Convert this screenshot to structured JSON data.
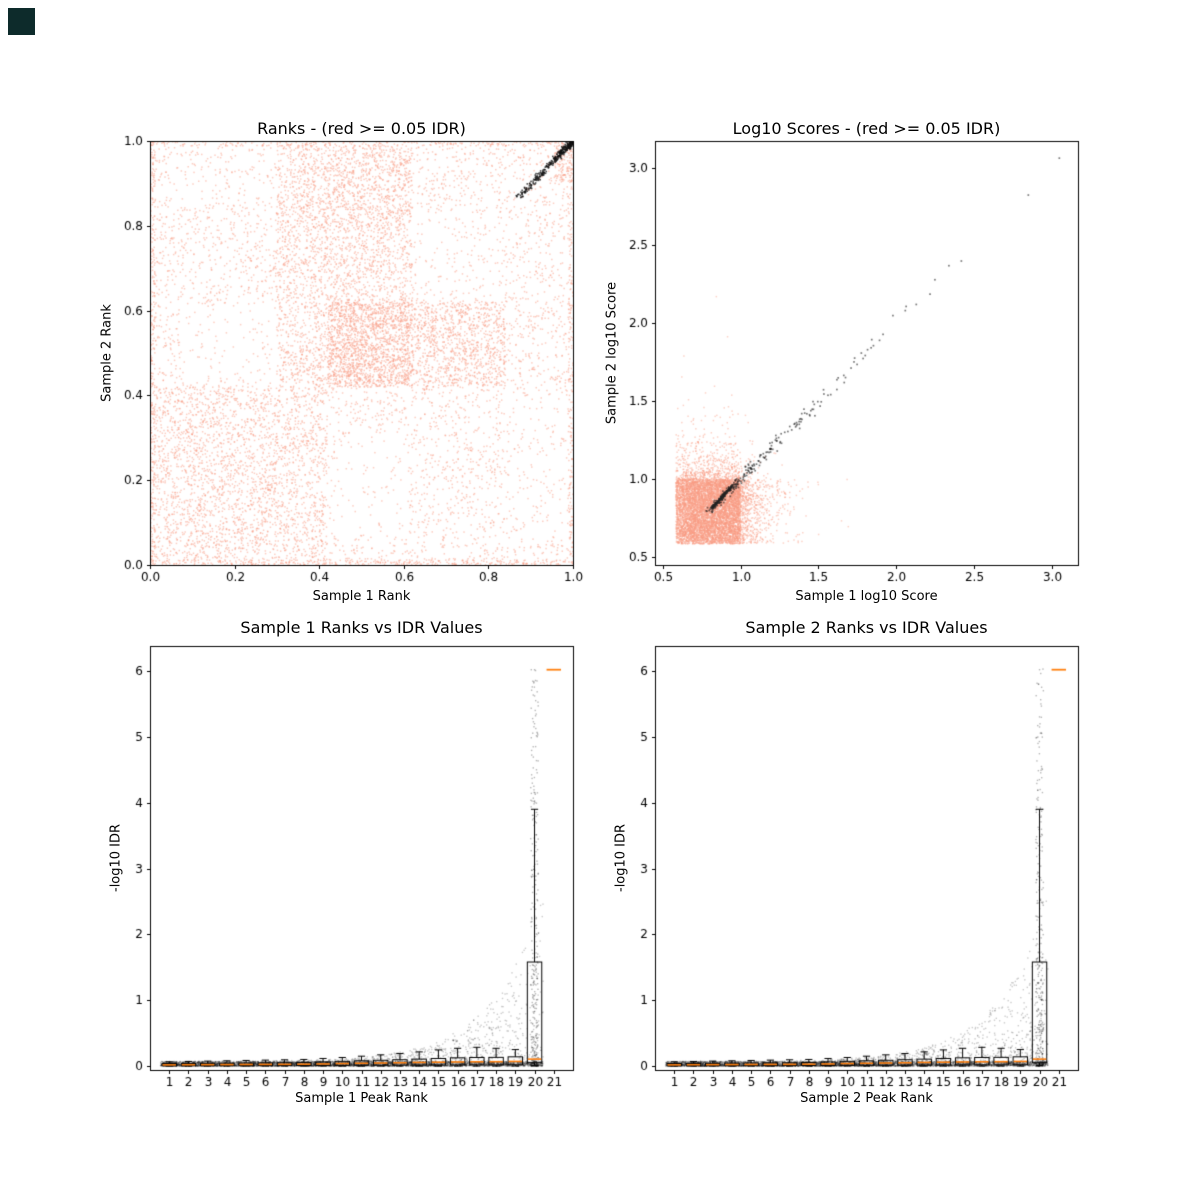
{
  "window": {
    "corner_square_color": "#0d2b2b"
  },
  "chart_data": [
    {
      "id": "ranks-scatter",
      "type": "scatter",
      "title": "Ranks - (red >= 0.05 IDR)",
      "xlabel": "Sample 1 Rank",
      "ylabel": "Sample 2 Rank",
      "xlim": [
        0.0,
        1.0
      ],
      "ylim": [
        0.0,
        1.0
      ],
      "xticks": [
        "0.0",
        "0.2",
        "0.4",
        "0.6",
        "0.8",
        "1.0"
      ],
      "yticks": [
        "0.0",
        "0.2",
        "0.4",
        "0.6",
        "0.8",
        "1.0"
      ],
      "grid": false,
      "legend": null,
      "series": [
        {
          "name": "IDR >= 0.05 (red)",
          "kind": "blocks",
          "color": "#f99b83",
          "alpha": 0.5,
          "size": 1.5,
          "seed": 11,
          "n": 6500,
          "sparse": [
            {
              "x": [
                0.07,
                0.3
              ],
              "y": [
                0.43,
                0.61
              ],
              "p": 0.3
            },
            {
              "x": [
                0.43,
                0.61
              ],
              "y": [
                0.07,
                0.3
              ],
              "p": 0.35
            },
            {
              "x": [
                0.63,
                0.83
              ],
              "y": [
                0.63,
                0.83
              ],
              "p": 0.5
            },
            {
              "x": [
                0.85,
                0.99
              ],
              "y": [
                0.05,
                0.4
              ],
              "p": 0.45
            },
            {
              "x": [
                0.05,
                0.4
              ],
              "y": [
                0.85,
                0.96
              ],
              "p": 0.55
            }
          ],
          "dense": [
            {
              "x": [
                0.42,
                0.62
              ],
              "y": [
                0.42,
                0.62
              ],
              "n": 1600
            },
            {
              "x": [
                0.3,
                0.62
              ],
              "y": [
                0.78,
                0.99
              ],
              "n": 1100
            },
            {
              "x": [
                0.62,
                0.84
              ],
              "y": [
                0.42,
                0.62
              ],
              "n": 800
            },
            {
              "x": [
                0.01,
                0.42
              ],
              "y": [
                0.01,
                0.42
              ],
              "n": 1600
            },
            {
              "x": [
                0.3,
                0.42
              ],
              "y": [
                0.42,
                0.78
              ],
              "n": 450
            },
            {
              "x": [
                0.42,
                0.62
              ],
              "y": [
                0.62,
                0.78
              ],
              "n": 350
            },
            {
              "x": [
                0.0,
                0.012
              ],
              "y": [
                0.0,
                1.0
              ],
              "n": 300
            },
            {
              "x": [
                0.0,
                1.0
              ],
              "y": [
                0.0,
                0.012
              ],
              "n": 300
            },
            {
              "x": [
                0.988,
                1.0
              ],
              "y": [
                0.0,
                1.0
              ],
              "n": 180
            },
            {
              "x": [
                0.0,
                1.0
              ],
              "y": [
                0.988,
                1.0
              ],
              "n": 180
            },
            {
              "x": [
                0.955,
                1.0
              ],
              "y": [
                0.9,
                1.0
              ],
              "n": 120
            }
          ]
        },
        {
          "name": "IDR < 0.05 (black)",
          "kind": "cluster",
          "color": "#111111",
          "alpha": 0.75,
          "size": 1.6,
          "seed": 23,
          "n": 380,
          "from": [
            0.872,
            0.868
          ],
          "to": [
            0.999,
            0.999
          ],
          "jitter": 0.011,
          "endbias": 2.2
        }
      ]
    },
    {
      "id": "log10-scores-scatter",
      "type": "scatter",
      "title": "Log10 Scores - (red >= 0.05 IDR)",
      "xlabel": "Sample 1 log10 Score",
      "ylabel": "Sample 2 log10 Score",
      "xlim": [
        0.45,
        3.17
      ],
      "ylim": [
        0.45,
        3.17
      ],
      "xticks": [
        "0.5",
        "1.0",
        "1.5",
        "2.0",
        "2.5",
        "3.0"
      ],
      "yticks": [
        "0.5",
        "1.0",
        "1.5",
        "2.0",
        "2.5",
        "3.0"
      ],
      "grid": false,
      "legend": null,
      "series": [
        {
          "name": "IDR >= 0.05 (red)",
          "kind": "blob",
          "color": "#f99b83",
          "alpha": 0.45,
          "size": 1.5,
          "seed": 37,
          "n": 8000,
          "core": [
            0.585,
            1.0
          ],
          "tail": 0.11,
          "tail_p": 0.3
        },
        {
          "name": "IDR < 0.05 (black)",
          "kind": "diag",
          "color": "#222222",
          "alpha": 0.6,
          "size": 1.7,
          "seed": 51,
          "n": 240,
          "start": 0.8,
          "scale": 0.38,
          "max": 3.1,
          "spread0": 0.02,
          "spread1": 0.02,
          "extras": [
            [
              3.05,
              3.06
            ],
            [
              2.42,
              2.4
            ],
            [
              2.34,
              2.37
            ],
            [
              2.25,
              2.28
            ],
            [
              1.98,
              2.05
            ]
          ]
        },
        {
          "name": "IDR < 0.05 knot",
          "kind": "cluster",
          "color": "#222222",
          "alpha": 0.7,
          "size": 1.7,
          "seed": 63,
          "n": 130,
          "from": [
            0.82,
            0.82
          ],
          "to": [
            0.95,
            0.96
          ],
          "jitter": 0.013,
          "endbias": 1.0
        }
      ]
    },
    {
      "id": "sample1-ranks-vs-idr",
      "type": "scatter_box",
      "title": "Sample 1 Ranks vs IDR Values",
      "xlabel": "Sample 1 Peak Rank",
      "ylabel": "-log10 IDR",
      "xlim": [
        0,
        22
      ],
      "ylim": [
        -0.06,
        6.38
      ],
      "xticks": [
        "1",
        "2",
        "3",
        "4",
        "5",
        "6",
        "7",
        "8",
        "9",
        "10",
        "11",
        "12",
        "13",
        "14",
        "15",
        "16",
        "17",
        "18",
        "19",
        "20",
        "21"
      ],
      "yticks": [
        "0",
        "1",
        "2",
        "3",
        "4",
        "5",
        "6"
      ],
      "grid": false,
      "legend": null,
      "median_color": "#ff7f0e",
      "box_width": 0.75,
      "series": [
        {
          "name": "peaks",
          "kind": "cloud",
          "color": "#111111",
          "alpha": 0.22,
          "size": 1.4,
          "seed": 71,
          "n": 5200,
          "x0": 0.55,
          "x1": 20.45,
          "band_frac": 0.55,
          "band_y": 0.07,
          "env_a": 0.07,
          "env_b": 0.0009,
          "env_k": 0.39,
          "pow": 2.6
        },
        {
          "name": "top-rank peaks",
          "kind": "column",
          "color": "#111111",
          "alpha": 0.3,
          "size": 1.4,
          "seed": 83,
          "n": 320,
          "x": [
            19.8,
            20.2
          ],
          "ymax": 6.04,
          "pow": 2.6,
          "extras": [
            [
              20.0,
              6.02
            ],
            [
              19.96,
              5.82
            ],
            [
              20.06,
              5.55
            ],
            [
              20.0,
              5.2
            ],
            [
              19.93,
              4.85
            ],
            [
              20.1,
              4.5
            ],
            [
              20.02,
              4.15
            ]
          ]
        }
      ],
      "boxplots": [
        {
          "x": 1,
          "lo": 0,
          "q1": 0.004,
          "med": 0.018,
          "q3": 0.038,
          "hi": 0.065
        },
        {
          "x": 2,
          "lo": 0,
          "q1": 0.005,
          "med": 0.02,
          "q3": 0.04,
          "hi": 0.07
        },
        {
          "x": 3,
          "lo": 0,
          "q1": 0.005,
          "med": 0.021,
          "q3": 0.042,
          "hi": 0.075
        },
        {
          "x": 4,
          "lo": 0,
          "q1": 0.006,
          "med": 0.022,
          "q3": 0.044,
          "hi": 0.08
        },
        {
          "x": 5,
          "lo": 0,
          "q1": 0.006,
          "med": 0.024,
          "q3": 0.046,
          "hi": 0.085
        },
        {
          "x": 6,
          "lo": 0,
          "q1": 0.007,
          "med": 0.025,
          "q3": 0.048,
          "hi": 0.09
        },
        {
          "x": 7,
          "lo": 0,
          "q1": 0.007,
          "med": 0.026,
          "q3": 0.05,
          "hi": 0.095
        },
        {
          "x": 8,
          "lo": 0,
          "q1": 0.008,
          "med": 0.028,
          "q3": 0.055,
          "hi": 0.1
        },
        {
          "x": 9,
          "lo": 0,
          "q1": 0.009,
          "med": 0.032,
          "q3": 0.062,
          "hi": 0.115
        },
        {
          "x": 10,
          "lo": 0,
          "q1": 0.01,
          "med": 0.038,
          "q3": 0.072,
          "hi": 0.13
        },
        {
          "x": 11,
          "lo": 0,
          "q1": 0.012,
          "med": 0.042,
          "q3": 0.08,
          "hi": 0.15
        },
        {
          "x": 12,
          "lo": 0,
          "q1": 0.013,
          "med": 0.046,
          "q3": 0.088,
          "hi": 0.17
        },
        {
          "x": 13,
          "lo": 0,
          "q1": 0.014,
          "med": 0.05,
          "q3": 0.096,
          "hi": 0.19
        },
        {
          "x": 14,
          "lo": 0,
          "q1": 0.015,
          "med": 0.055,
          "q3": 0.105,
          "hi": 0.215
        },
        {
          "x": 15,
          "lo": 0,
          "q1": 0.016,
          "med": 0.058,
          "q3": 0.115,
          "hi": 0.245
        },
        {
          "x": 16,
          "lo": 0,
          "q1": 0.017,
          "med": 0.062,
          "q3": 0.125,
          "hi": 0.27
        },
        {
          "x": 17,
          "lo": 0,
          "q1": 0.018,
          "med": 0.065,
          "q3": 0.13,
          "hi": 0.285
        },
        {
          "x": 18,
          "lo": 0,
          "q1": 0.018,
          "med": 0.066,
          "q3": 0.132,
          "hi": 0.27
        },
        {
          "x": 19,
          "lo": 0,
          "q1": 0.019,
          "med": 0.07,
          "q3": 0.14,
          "hi": 0.25
        },
        {
          "x": 20,
          "lo": 0.01,
          "q1": 0.05,
          "med": 0.105,
          "q3": 1.58,
          "hi": 3.9
        }
      ],
      "extra_medians": [
        {
          "x": 21,
          "y": 6.02
        }
      ]
    },
    {
      "id": "sample2-ranks-vs-idr",
      "type": "scatter_box",
      "title": "Sample 2 Ranks vs IDR Values",
      "xlabel": "Sample 2 Peak Rank",
      "ylabel": "-log10 IDR",
      "xlim": [
        0,
        22
      ],
      "ylim": [
        -0.06,
        6.38
      ],
      "xticks": [
        "1",
        "2",
        "3",
        "4",
        "5",
        "6",
        "7",
        "8",
        "9",
        "10",
        "11",
        "12",
        "13",
        "14",
        "15",
        "16",
        "17",
        "18",
        "19",
        "20",
        "21"
      ],
      "yticks": [
        "0",
        "1",
        "2",
        "3",
        "4",
        "5",
        "6"
      ],
      "grid": false,
      "legend": null,
      "median_color": "#ff7f0e",
      "box_width": 0.75,
      "series": [
        {
          "name": "peaks",
          "kind": "cloud",
          "color": "#111111",
          "alpha": 0.22,
          "size": 1.4,
          "seed": 72,
          "n": 5200,
          "x0": 0.55,
          "x1": 20.45,
          "band_frac": 0.55,
          "band_y": 0.07,
          "env_a": 0.07,
          "env_b": 0.0009,
          "env_k": 0.39,
          "pow": 2.6
        },
        {
          "name": "top-rank peaks",
          "kind": "column",
          "color": "#111111",
          "alpha": 0.3,
          "size": 1.4,
          "seed": 84,
          "n": 320,
          "x": [
            19.8,
            20.2
          ],
          "ymax": 6.04,
          "pow": 2.6,
          "extras": [
            [
              20.0,
              6.02
            ],
            [
              19.95,
              5.8
            ],
            [
              20.07,
              5.5
            ],
            [
              20.0,
              5.15
            ],
            [
              19.92,
              4.9
            ],
            [
              20.1,
              4.55
            ],
            [
              20.03,
              4.2
            ]
          ]
        }
      ],
      "boxplots": [
        {
          "x": 1,
          "lo": 0,
          "q1": 0.004,
          "med": 0.018,
          "q3": 0.038,
          "hi": 0.065
        },
        {
          "x": 2,
          "lo": 0,
          "q1": 0.005,
          "med": 0.02,
          "q3": 0.04,
          "hi": 0.07
        },
        {
          "x": 3,
          "lo": 0,
          "q1": 0.005,
          "med": 0.021,
          "q3": 0.042,
          "hi": 0.075
        },
        {
          "x": 4,
          "lo": 0,
          "q1": 0.006,
          "med": 0.022,
          "q3": 0.044,
          "hi": 0.08
        },
        {
          "x": 5,
          "lo": 0,
          "q1": 0.006,
          "med": 0.024,
          "q3": 0.046,
          "hi": 0.085
        },
        {
          "x": 6,
          "lo": 0,
          "q1": 0.007,
          "med": 0.025,
          "q3": 0.048,
          "hi": 0.09
        },
        {
          "x": 7,
          "lo": 0,
          "q1": 0.007,
          "med": 0.026,
          "q3": 0.05,
          "hi": 0.095
        },
        {
          "x": 8,
          "lo": 0,
          "q1": 0.008,
          "med": 0.028,
          "q3": 0.055,
          "hi": 0.1
        },
        {
          "x": 9,
          "lo": 0,
          "q1": 0.009,
          "med": 0.032,
          "q3": 0.062,
          "hi": 0.115
        },
        {
          "x": 10,
          "lo": 0,
          "q1": 0.01,
          "med": 0.038,
          "q3": 0.072,
          "hi": 0.13
        },
        {
          "x": 11,
          "lo": 0,
          "q1": 0.012,
          "med": 0.042,
          "q3": 0.08,
          "hi": 0.15
        },
        {
          "x": 12,
          "lo": 0,
          "q1": 0.013,
          "med": 0.046,
          "q3": 0.088,
          "hi": 0.17
        },
        {
          "x": 13,
          "lo": 0,
          "q1": 0.014,
          "med": 0.05,
          "q3": 0.096,
          "hi": 0.19
        },
        {
          "x": 14,
          "lo": 0,
          "q1": 0.015,
          "med": 0.055,
          "q3": 0.105,
          "hi": 0.215
        },
        {
          "x": 15,
          "lo": 0,
          "q1": 0.016,
          "med": 0.058,
          "q3": 0.115,
          "hi": 0.245
        },
        {
          "x": 16,
          "lo": 0,
          "q1": 0.017,
          "med": 0.062,
          "q3": 0.125,
          "hi": 0.27
        },
        {
          "x": 17,
          "lo": 0,
          "q1": 0.018,
          "med": 0.065,
          "q3": 0.13,
          "hi": 0.285
        },
        {
          "x": 18,
          "lo": 0,
          "q1": 0.018,
          "med": 0.066,
          "q3": 0.132,
          "hi": 0.27
        },
        {
          "x": 19,
          "lo": 0,
          "q1": 0.019,
          "med": 0.07,
          "q3": 0.14,
          "hi": 0.25
        },
        {
          "x": 20,
          "lo": 0.01,
          "q1": 0.05,
          "med": 0.105,
          "q3": 1.58,
          "hi": 3.9
        }
      ],
      "extra_medians": [
        {
          "x": 21,
          "y": 6.02
        }
      ]
    }
  ]
}
